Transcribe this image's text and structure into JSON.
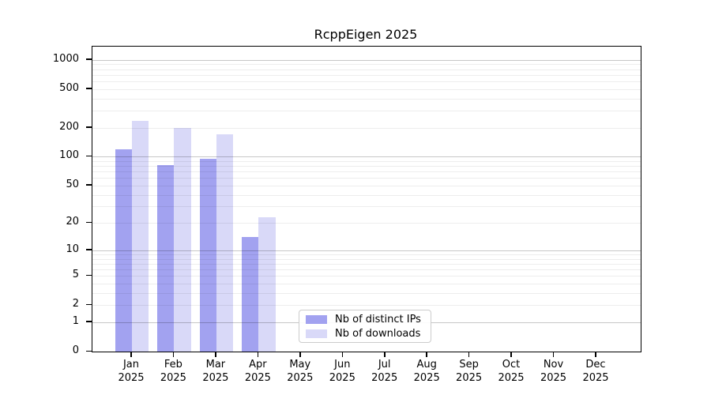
{
  "title": "RcppEigen 2025",
  "chart_data": {
    "type": "bar",
    "title": "RcppEigen 2025",
    "categories": [
      "Jan",
      "Feb",
      "Mar",
      "Apr",
      "May",
      "Jun",
      "Jul",
      "Aug",
      "Sep",
      "Oct",
      "Nov",
      "Dec"
    ],
    "year_label": "2025",
    "series": [
      {
        "name": "Nb of distinct IPs",
        "color": "#a2a2f0",
        "values": [
          120,
          82,
          95,
          14,
          null,
          null,
          null,
          null,
          null,
          null,
          null,
          null
        ]
      },
      {
        "name": "Nb of downloads",
        "color": "#d9d9f8",
        "values": [
          233,
          198,
          170,
          23,
          null,
          null,
          null,
          null,
          null,
          null,
          null,
          null
        ]
      }
    ],
    "y_axis": {
      "scale": "log1p",
      "ticks": [
        0,
        1,
        2,
        5,
        10,
        20,
        50,
        100,
        200,
        500,
        1000
      ],
      "major_gridlines": [
        1,
        10,
        100,
        1000
      ],
      "ylim": [
        0,
        1360
      ]
    },
    "x_axis": {
      "tick_line2": "2025"
    },
    "grid": "horizontal",
    "legend_position": "lower-center"
  },
  "colors": {
    "distinct_ips": "#a2a2f0",
    "downloads": "#d9d9f8",
    "major_grid": "rgba(0,0,0,0.22)",
    "minor_grid": "rgba(0,0,0,0.07)",
    "spine": "#000000"
  }
}
